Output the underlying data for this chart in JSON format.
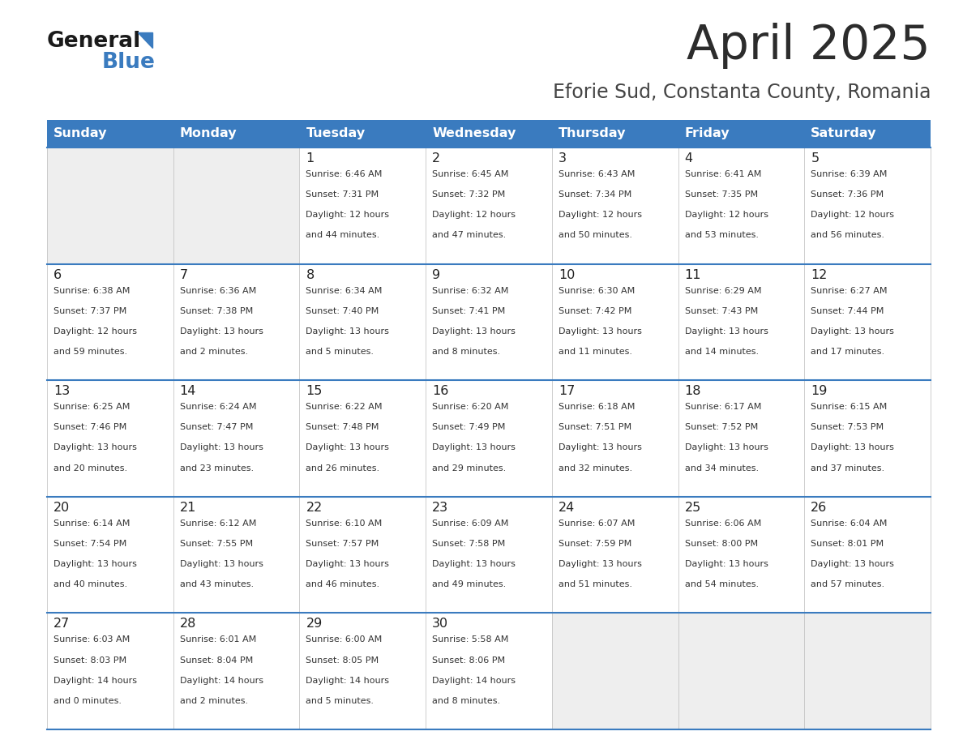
{
  "title": "April 2025",
  "subtitle": "Eforie Sud, Constanta County, Romania",
  "title_color": "#2c2c2c",
  "subtitle_color": "#444444",
  "header_bg_color": "#3a7bbf",
  "header_text_color": "#ffffff",
  "empty_cell_bg": "#eeeeee",
  "filled_cell_bg": "#ffffff",
  "day_number_color": "#222222",
  "day_info_color": "#333333",
  "grid_line_color": "#3a7bbf",
  "weekdays": [
    "Sunday",
    "Monday",
    "Tuesday",
    "Wednesday",
    "Thursday",
    "Friday",
    "Saturday"
  ],
  "weeks": [
    [
      {
        "day": null,
        "info": null
      },
      {
        "day": null,
        "info": null
      },
      {
        "day": 1,
        "info": "Sunrise: 6:46 AM\nSunset: 7:31 PM\nDaylight: 12 hours\nand 44 minutes."
      },
      {
        "day": 2,
        "info": "Sunrise: 6:45 AM\nSunset: 7:32 PM\nDaylight: 12 hours\nand 47 minutes."
      },
      {
        "day": 3,
        "info": "Sunrise: 6:43 AM\nSunset: 7:34 PM\nDaylight: 12 hours\nand 50 minutes."
      },
      {
        "day": 4,
        "info": "Sunrise: 6:41 AM\nSunset: 7:35 PM\nDaylight: 12 hours\nand 53 minutes."
      },
      {
        "day": 5,
        "info": "Sunrise: 6:39 AM\nSunset: 7:36 PM\nDaylight: 12 hours\nand 56 minutes."
      }
    ],
    [
      {
        "day": 6,
        "info": "Sunrise: 6:38 AM\nSunset: 7:37 PM\nDaylight: 12 hours\nand 59 minutes."
      },
      {
        "day": 7,
        "info": "Sunrise: 6:36 AM\nSunset: 7:38 PM\nDaylight: 13 hours\nand 2 minutes."
      },
      {
        "day": 8,
        "info": "Sunrise: 6:34 AM\nSunset: 7:40 PM\nDaylight: 13 hours\nand 5 minutes."
      },
      {
        "day": 9,
        "info": "Sunrise: 6:32 AM\nSunset: 7:41 PM\nDaylight: 13 hours\nand 8 minutes."
      },
      {
        "day": 10,
        "info": "Sunrise: 6:30 AM\nSunset: 7:42 PM\nDaylight: 13 hours\nand 11 minutes."
      },
      {
        "day": 11,
        "info": "Sunrise: 6:29 AM\nSunset: 7:43 PM\nDaylight: 13 hours\nand 14 minutes."
      },
      {
        "day": 12,
        "info": "Sunrise: 6:27 AM\nSunset: 7:44 PM\nDaylight: 13 hours\nand 17 minutes."
      }
    ],
    [
      {
        "day": 13,
        "info": "Sunrise: 6:25 AM\nSunset: 7:46 PM\nDaylight: 13 hours\nand 20 minutes."
      },
      {
        "day": 14,
        "info": "Sunrise: 6:24 AM\nSunset: 7:47 PM\nDaylight: 13 hours\nand 23 minutes."
      },
      {
        "day": 15,
        "info": "Sunrise: 6:22 AM\nSunset: 7:48 PM\nDaylight: 13 hours\nand 26 minutes."
      },
      {
        "day": 16,
        "info": "Sunrise: 6:20 AM\nSunset: 7:49 PM\nDaylight: 13 hours\nand 29 minutes."
      },
      {
        "day": 17,
        "info": "Sunrise: 6:18 AM\nSunset: 7:51 PM\nDaylight: 13 hours\nand 32 minutes."
      },
      {
        "day": 18,
        "info": "Sunrise: 6:17 AM\nSunset: 7:52 PM\nDaylight: 13 hours\nand 34 minutes."
      },
      {
        "day": 19,
        "info": "Sunrise: 6:15 AM\nSunset: 7:53 PM\nDaylight: 13 hours\nand 37 minutes."
      }
    ],
    [
      {
        "day": 20,
        "info": "Sunrise: 6:14 AM\nSunset: 7:54 PM\nDaylight: 13 hours\nand 40 minutes."
      },
      {
        "day": 21,
        "info": "Sunrise: 6:12 AM\nSunset: 7:55 PM\nDaylight: 13 hours\nand 43 minutes."
      },
      {
        "day": 22,
        "info": "Sunrise: 6:10 AM\nSunset: 7:57 PM\nDaylight: 13 hours\nand 46 minutes."
      },
      {
        "day": 23,
        "info": "Sunrise: 6:09 AM\nSunset: 7:58 PM\nDaylight: 13 hours\nand 49 minutes."
      },
      {
        "day": 24,
        "info": "Sunrise: 6:07 AM\nSunset: 7:59 PM\nDaylight: 13 hours\nand 51 minutes."
      },
      {
        "day": 25,
        "info": "Sunrise: 6:06 AM\nSunset: 8:00 PM\nDaylight: 13 hours\nand 54 minutes."
      },
      {
        "day": 26,
        "info": "Sunrise: 6:04 AM\nSunset: 8:01 PM\nDaylight: 13 hours\nand 57 minutes."
      }
    ],
    [
      {
        "day": 27,
        "info": "Sunrise: 6:03 AM\nSunset: 8:03 PM\nDaylight: 14 hours\nand 0 minutes."
      },
      {
        "day": 28,
        "info": "Sunrise: 6:01 AM\nSunset: 8:04 PM\nDaylight: 14 hours\nand 2 minutes."
      },
      {
        "day": 29,
        "info": "Sunrise: 6:00 AM\nSunset: 8:05 PM\nDaylight: 14 hours\nand 5 minutes."
      },
      {
        "day": 30,
        "info": "Sunrise: 5:58 AM\nSunset: 8:06 PM\nDaylight: 14 hours\nand 8 minutes."
      },
      {
        "day": null,
        "info": null
      },
      {
        "day": null,
        "info": null
      },
      {
        "day": null,
        "info": null
      }
    ]
  ]
}
